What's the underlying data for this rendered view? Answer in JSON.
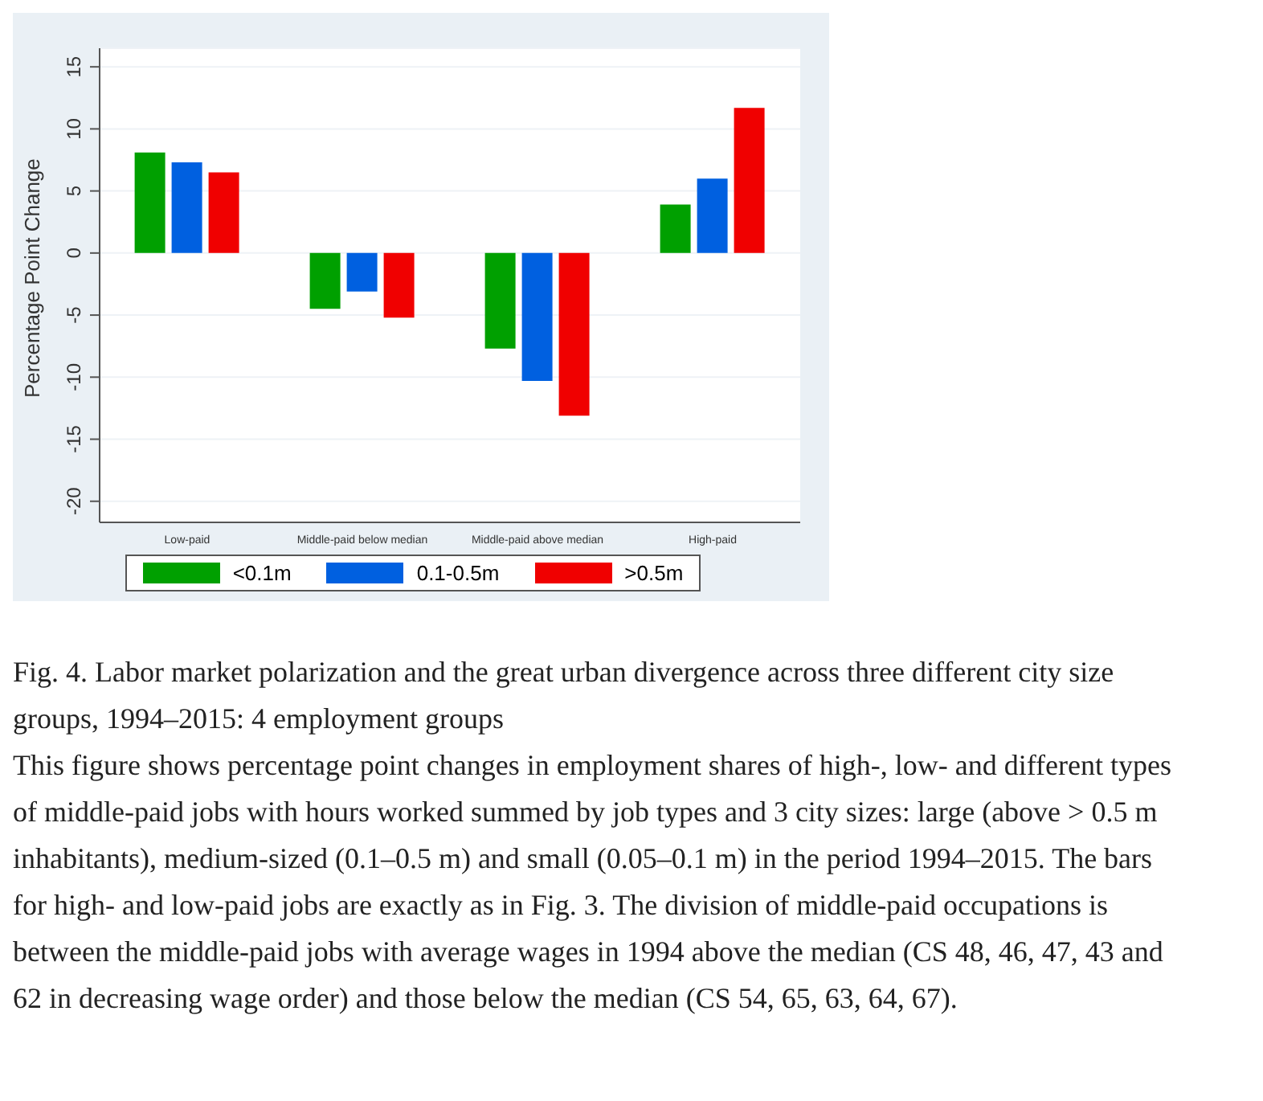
{
  "chart_data": {
    "type": "bar",
    "title": "Fig. 4. Labor market polarization and the great urban divergence across three different city size groups, 1994–2015: 4 employment groups",
    "annotations": [
      "This figure shows percentage point changes in employment shares of high-, low- and different types of middle-paid jobs with hours worked summed by job types and 3 city sizes: large (above > 0.5 m inhabitants), medium-sized (0.1–0.5 m) and small (0.05–0.1 m) in the period 1994–2015. The bars for high- and low-paid jobs are exactly as in Fig. 3. The division of middle-paid occupations is between the middle-paid jobs with average wages in 1994 above the median (CS 48, 46, 47, 43 and 62 in decreasing wage order) and those below the median (CS 54, 65, 63, 64, 67)."
    ],
    "ylabel": "Percentage Point Change",
    "categories": [
      "Low-paid",
      "Middle-paid below median",
      "Middle-paid above median",
      "High-paid"
    ],
    "series": [
      {
        "name": "<0.1m",
        "color": "#00a000",
        "values": [
          8.1,
          -4.5,
          -7.7,
          3.9
        ]
      },
      {
        "name": "0.1-0.5m",
        "color": "#0060e0",
        "values": [
          7.3,
          -3.1,
          -10.3,
          6.0
        ]
      },
      {
        "name": ">0.5m",
        "color": "#f00000",
        "values": [
          6.5,
          -5.2,
          -13.1,
          11.7
        ]
      }
    ],
    "ylim": [
      -21.7,
      16.5
    ],
    "yticks": [
      -20,
      -15,
      -10,
      -5,
      0,
      5,
      10,
      15
    ],
    "grid": "y",
    "legend": "bottom"
  }
}
